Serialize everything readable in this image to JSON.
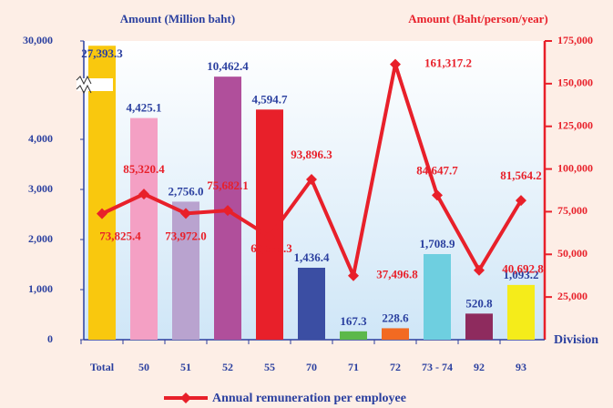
{
  "chart_data": {
    "type": "bar_line",
    "y_title": "Amount (Million baht)",
    "y2_title": "Amount (Baht/person/year)",
    "x_title": "Division",
    "categories": [
      "Total",
      "50",
      "51",
      "52",
      "55",
      "70",
      "71",
      "72",
      "73 - 74",
      "92",
      "93"
    ],
    "bars": {
      "values": [
        27393.3,
        4425.1,
        2756.0,
        10462.4,
        4594.7,
        1436.4,
        167.3,
        228.6,
        1708.9,
        520.8,
        1093.2
      ],
      "value_labels": [
        "27,393.3",
        "4,425.1",
        "2,756.0",
        "10,462.4",
        "4,594.7",
        "1,436.4",
        "167.3",
        "228.6",
        "1,708.9",
        "520.8",
        "1,093.2"
      ],
      "colors": [
        "#f9c80e",
        "#f4a0c4",
        "#b9a3cf",
        "#b04f9b",
        "#e8202a",
        "#3b4ea3",
        "#5cb84a",
        "#f26a22",
        "#6ecfe0",
        "#8e2b5e",
        "#f5ec1a"
      ]
    },
    "series": [
      {
        "name": "Annual remuneration per employee",
        "color": "#e8202a",
        "axis": "y2",
        "values": [
          73825.4,
          85320.4,
          73972.0,
          75682.1,
          60355.3,
          93896.3,
          37496.8,
          161317.2,
          84647.7,
          40692.8,
          81564.2
        ],
        "value_labels": [
          "73,825.4",
          "85,320.4",
          "73,972.0",
          "75,682.1",
          "60,355.3",
          "93,896.3",
          "37,496.8",
          "161,317.2",
          "84,647.7",
          "40,692.8",
          "81,564.2"
        ]
      }
    ],
    "ylim": [
      0,
      30000
    ],
    "yticks": [
      0,
      {
        "value": 1000,
        "label": "1,000"
      },
      {
        "value": 2000,
        "label": "2,000"
      },
      {
        "value": 3000,
        "label": "3,000"
      },
      {
        "value": 4000,
        "label": "4,000"
      },
      {
        "value": 30000,
        "label": "30,000"
      }
    ],
    "axis_break": true,
    "y2lim": [
      0,
      175000
    ],
    "y2ticks": [
      {
        "value": 25000,
        "label": "25,000"
      },
      {
        "value": 50000,
        "label": "50,000"
      },
      {
        "value": 75000,
        "label": "75,000"
      },
      {
        "value": 100000,
        "label": "100,000"
      },
      {
        "value": 125000,
        "label": "125,000"
      },
      {
        "value": 150000,
        "label": "150,000"
      },
      {
        "value": 175000,
        "label": "175,000"
      }
    ]
  }
}
